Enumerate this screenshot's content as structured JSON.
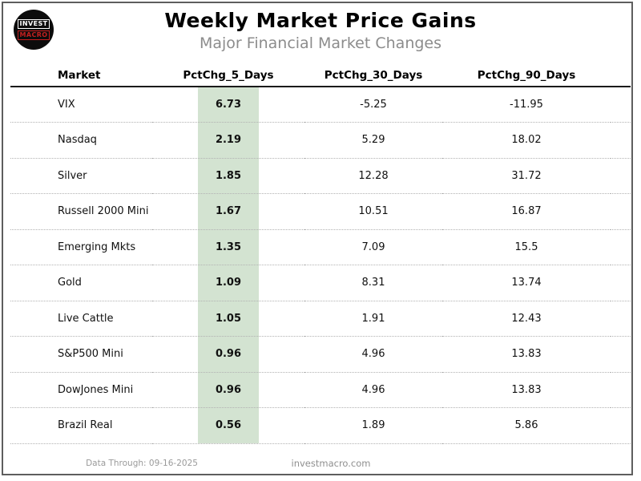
{
  "logo": {
    "line1": "INVEST",
    "line2": "MACRO"
  },
  "header": {
    "title": "Weekly Market Price Gains",
    "subtitle": "Major Financial Market Changes"
  },
  "table": {
    "columns": [
      "Market",
      "PctChg_5_Days",
      "PctChg_30_Days",
      "PctChg_90_Days"
    ],
    "rows": [
      {
        "market": "VIX",
        "d5": "6.73",
        "d30": "-5.25",
        "d90": "-11.95"
      },
      {
        "market": "Nasdaq",
        "d5": "2.19",
        "d30": "5.29",
        "d90": "18.02"
      },
      {
        "market": "Silver",
        "d5": "1.85",
        "d30": "12.28",
        "d90": "31.72"
      },
      {
        "market": "Russell 2000 Mini",
        "d5": "1.67",
        "d30": "10.51",
        "d90": "16.87"
      },
      {
        "market": "Emerging Mkts",
        "d5": "1.35",
        "d30": "7.09",
        "d90": "15.5"
      },
      {
        "market": "Gold",
        "d5": "1.09",
        "d30": "8.31",
        "d90": "13.74"
      },
      {
        "market": "Live Cattle",
        "d5": "1.05",
        "d30": "1.91",
        "d90": "12.43"
      },
      {
        "market": "S&P500 Mini",
        "d5": "0.96",
        "d30": "4.96",
        "d90": "13.83"
      },
      {
        "market": "DowJones Mini",
        "d5": "0.96",
        "d30": "4.96",
        "d90": "13.83"
      },
      {
        "market": "Brazil Real",
        "d5": "0.56",
        "d30": "1.89",
        "d90": "5.86"
      }
    ]
  },
  "footer": {
    "data_through": "Data Through: 09-16-2025",
    "website": "investmacro.com"
  },
  "colors": {
    "highlight_green": "#d3e3d1",
    "logo_red": "#c41f1f",
    "subtitle_gray": "#8c8c8c"
  },
  "chart_data": {
    "type": "table",
    "title": "Weekly Market Price Gains",
    "subtitle": "Major Financial Market Changes",
    "columns": [
      "Market",
      "PctChg_5_Days",
      "PctChg_30_Days",
      "PctChg_90_Days"
    ],
    "categories": [
      "VIX",
      "Nasdaq",
      "Silver",
      "Russell 2000 Mini",
      "Emerging Mkts",
      "Gold",
      "Live Cattle",
      "S&P500 Mini",
      "DowJones Mini",
      "Brazil Real"
    ],
    "series": [
      {
        "name": "PctChg_5_Days",
        "values": [
          6.73,
          2.19,
          1.85,
          1.67,
          1.35,
          1.09,
          1.05,
          0.96,
          0.96,
          0.56
        ]
      },
      {
        "name": "PctChg_30_Days",
        "values": [
          -5.25,
          5.29,
          12.28,
          10.51,
          7.09,
          8.31,
          1.91,
          4.96,
          4.96,
          1.89
        ]
      },
      {
        "name": "PctChg_90_Days",
        "values": [
          -11.95,
          18.02,
          31.72,
          16.87,
          15.5,
          13.74,
          12.43,
          13.83,
          13.83,
          5.86
        ]
      }
    ],
    "layout_hints": {
      "highlighted_column": "PctChg_5_Days",
      "sorted_by": "PctChg_5_Days descending"
    }
  }
}
